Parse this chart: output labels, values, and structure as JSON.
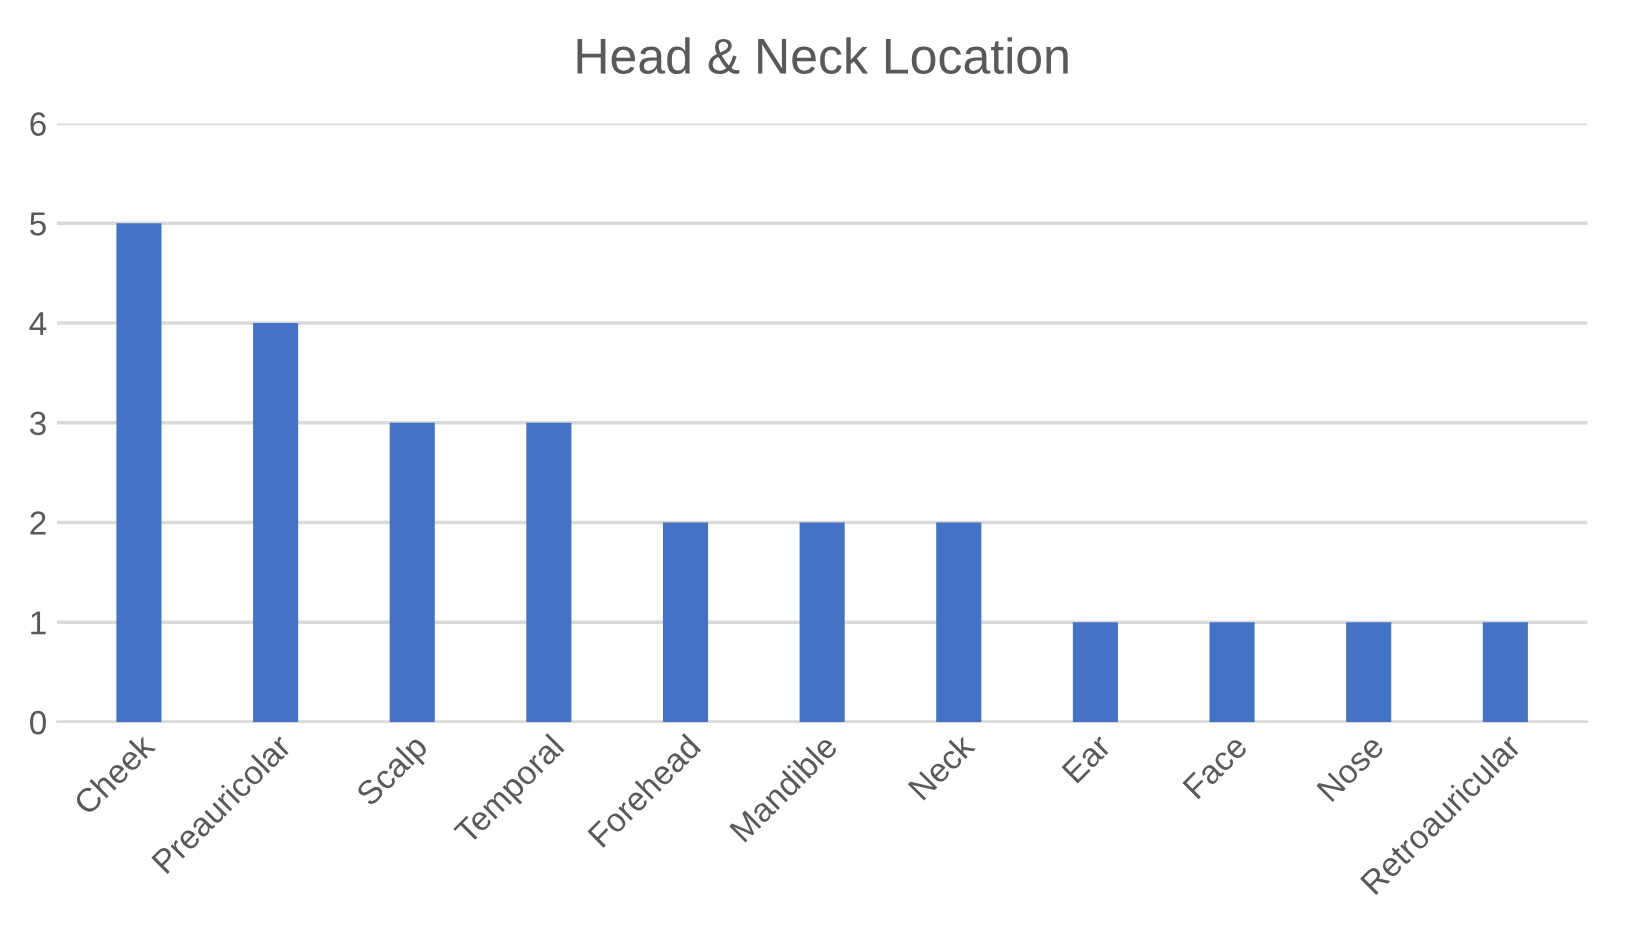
{
  "chart_data": {
    "type": "bar",
    "title": "Head & Neck Location",
    "categories": [
      "Cheek",
      "Preauricolar",
      "Scalp",
      "Temporal",
      "Forehead",
      "Mandible",
      "Neck",
      "Ear",
      "Face",
      "Nose",
      "Retroauricular"
    ],
    "values": [
      5,
      4,
      3,
      3,
      2,
      2,
      2,
      1,
      1,
      1,
      1
    ],
    "color": "#4472c4",
    "ylim": [
      0,
      6
    ],
    "yticks": [
      0,
      1,
      2,
      3,
      4,
      5,
      6
    ],
    "grid": "y",
    "legend": false
  }
}
